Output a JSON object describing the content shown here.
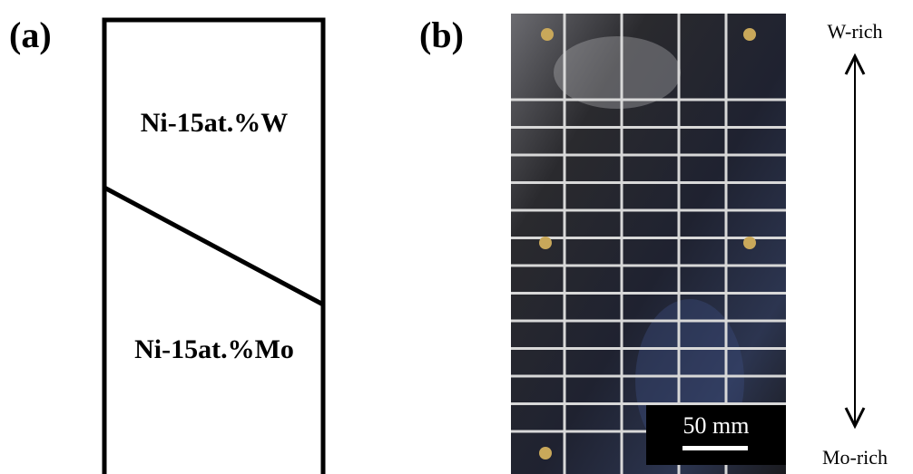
{
  "panel_a": {
    "label": "(a)",
    "top_region": "Ni-15at.%W",
    "bottom_region": "Ni-15at.%Mo"
  },
  "panel_b": {
    "label": "(b)",
    "scale_bar": "50 mm",
    "top_label": "W-rich",
    "bottom_label": "Mo-rich"
  }
}
